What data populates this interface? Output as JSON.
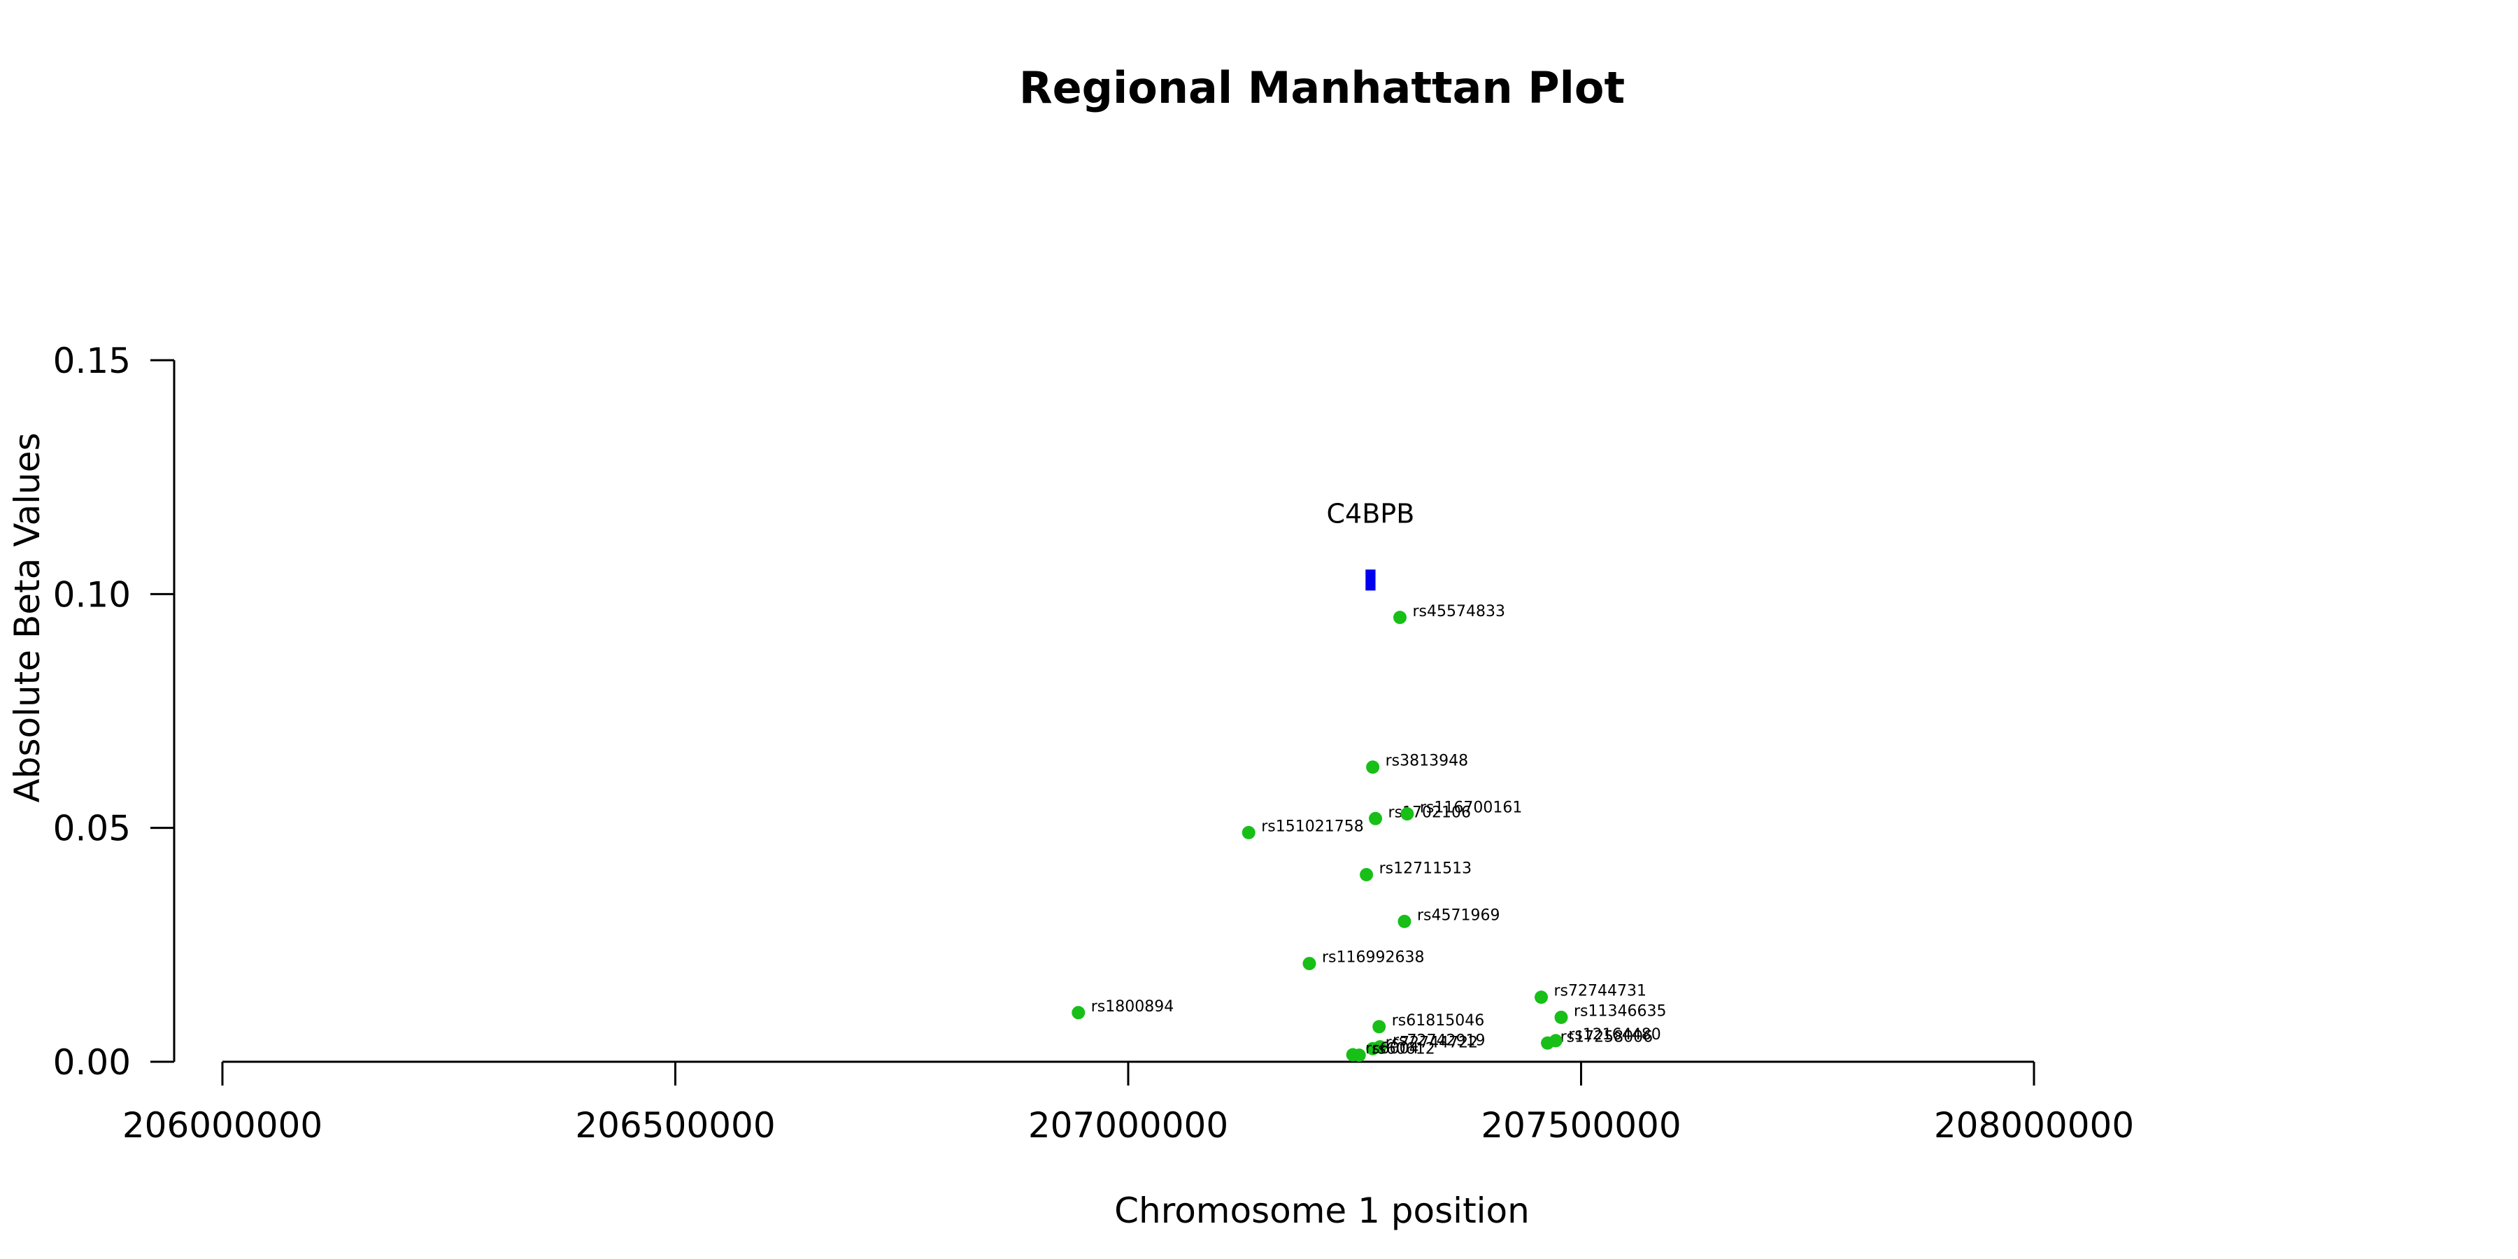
{
  "chart_data": {
    "type": "scatter",
    "title": "Regional Manhattan Plot",
    "xlabel": "Chromosome 1 position",
    "ylabel": "Absolute Beta Values",
    "xlim": [
      206000000,
      208000000
    ],
    "ylim": [
      0,
      0.15
    ],
    "x_ticks": [
      "206000000",
      "206500000",
      "207000000",
      "207500000",
      "208000000"
    ],
    "y_ticks": [
      "0.00",
      "0.05",
      "0.10",
      "0.15"
    ],
    "grid": false,
    "colors": {
      "points": "#17bf17",
      "gene": "#0000ee",
      "axis": "#000000"
    },
    "gene": {
      "name": "C4BPB",
      "start": 207262000,
      "end": 207273000,
      "y": 0.103
    },
    "points": [
      {
        "label": "rs45574833",
        "x": 207300000,
        "y": 0.095
      },
      {
        "label": "rs3813948",
        "x": 207270000,
        "y": 0.063
      },
      {
        "label": "rs1702106",
        "x": 207273000,
        "y": 0.052
      },
      {
        "label": "rs116700161",
        "x": 207308000,
        "y": 0.053
      },
      {
        "label": "rs151021758",
        "x": 207133000,
        "y": 0.049
      },
      {
        "label": "rs12711513",
        "x": 207263000,
        "y": 0.04
      },
      {
        "label": "rs4571969",
        "x": 207305000,
        "y": 0.03
      },
      {
        "label": "rs116992638",
        "x": 207200000,
        "y": 0.021
      },
      {
        "label": "rs1800894",
        "x": 206945000,
        "y": 0.0105
      },
      {
        "label": "rs72744731",
        "x": 207456000,
        "y": 0.0138
      },
      {
        "label": "rs11346635",
        "x": 207478000,
        "y": 0.0095
      },
      {
        "label": "rs61815046",
        "x": 207277000,
        "y": 0.0075
      },
      {
        "label": "rs17258006",
        "x": 207463000,
        "y": 0.004
      },
      {
        "label": "rs12164480",
        "x": 207472000,
        "y": 0.0045
      },
      {
        "label": "rs72742919",
        "x": 207278000,
        "y": 0.0032
      },
      {
        "label": "rs72744722",
        "x": 207270000,
        "y": 0.0028
      },
      {
        "label": "rs6004",
        "x": 207248000,
        "y": 0.0015
      },
      {
        "label": "rs60612",
        "x": 207255000,
        "y": 0.0014
      }
    ]
  }
}
